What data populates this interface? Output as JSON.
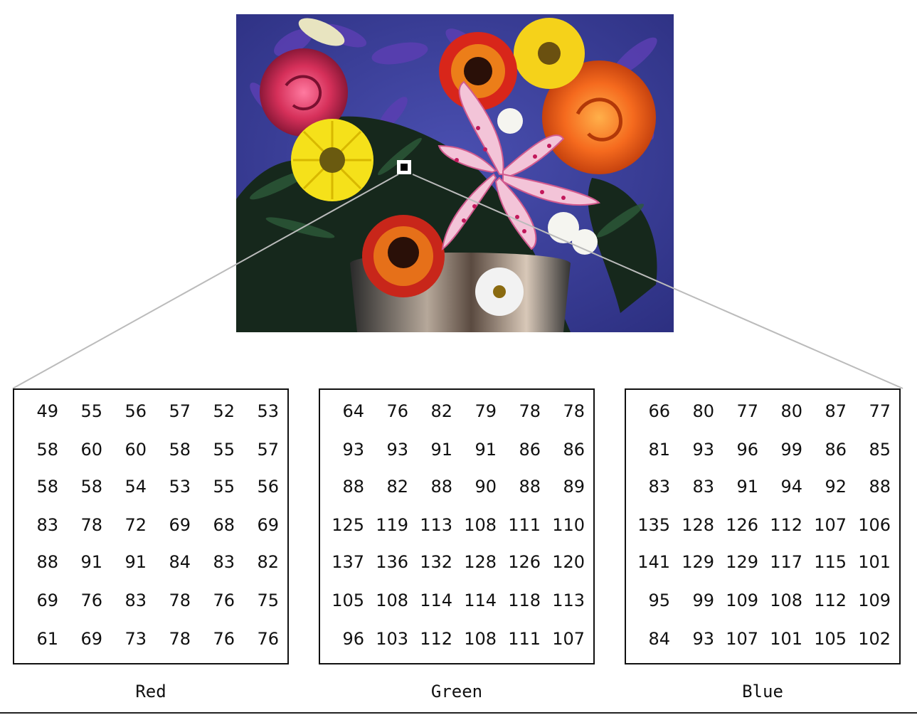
{
  "matrices": [
    {
      "caption": "Red",
      "rows": [
        [
          "49",
          "55",
          "56",
          "57",
          "52",
          "53"
        ],
        [
          "58",
          "60",
          "60",
          "58",
          "55",
          "57"
        ],
        [
          "58",
          "58",
          "54",
          "53",
          "55",
          "56"
        ],
        [
          "83",
          "78",
          "72",
          "69",
          "68",
          "69"
        ],
        [
          "88",
          "91",
          "91",
          "84",
          "83",
          "82"
        ],
        [
          "69",
          "76",
          "83",
          "78",
          "76",
          "75"
        ],
        [
          "61",
          "69",
          "73",
          "78",
          "76",
          "76"
        ]
      ]
    },
    {
      "caption": "Green",
      "rows": [
        [
          "64",
          "76",
          "82",
          "79",
          "78",
          "78"
        ],
        [
          "93",
          "93",
          "91",
          "91",
          "86",
          "86"
        ],
        [
          "88",
          "82",
          "88",
          "90",
          "88",
          "89"
        ],
        [
          "125",
          "119",
          "113",
          "108",
          "111",
          "110"
        ],
        [
          "137",
          "136",
          "132",
          "128",
          "126",
          "120"
        ],
        [
          "105",
          "108",
          "114",
          "114",
          "118",
          "113"
        ],
        [
          "96",
          "103",
          "112",
          "108",
          "111",
          "107"
        ]
      ]
    },
    {
      "caption": "Blue",
      "rows": [
        [
          "66",
          "80",
          "77",
          "80",
          "87",
          "77"
        ],
        [
          "81",
          "93",
          "96",
          "99",
          "86",
          "85"
        ],
        [
          "83",
          "83",
          "91",
          "94",
          "92",
          "88"
        ],
        [
          "135",
          "128",
          "126",
          "112",
          "107",
          "106"
        ],
        [
          "141",
          "129",
          "129",
          "117",
          "115",
          "101"
        ],
        [
          "95",
          "99",
          "109",
          "108",
          "112",
          "109"
        ],
        [
          "84",
          "93",
          "107",
          "101",
          "105",
          "102"
        ]
      ]
    }
  ],
  "colors": {
    "background_blue": "#3a3f9a",
    "rose_pink": "#d6305a",
    "rose_orange": "#f56a1e",
    "daisy_yellow": "#f5e11a",
    "gerbera_red": "#d8261a",
    "lily_pink": "#e9a6c6",
    "foliage": "#1e3a28"
  }
}
